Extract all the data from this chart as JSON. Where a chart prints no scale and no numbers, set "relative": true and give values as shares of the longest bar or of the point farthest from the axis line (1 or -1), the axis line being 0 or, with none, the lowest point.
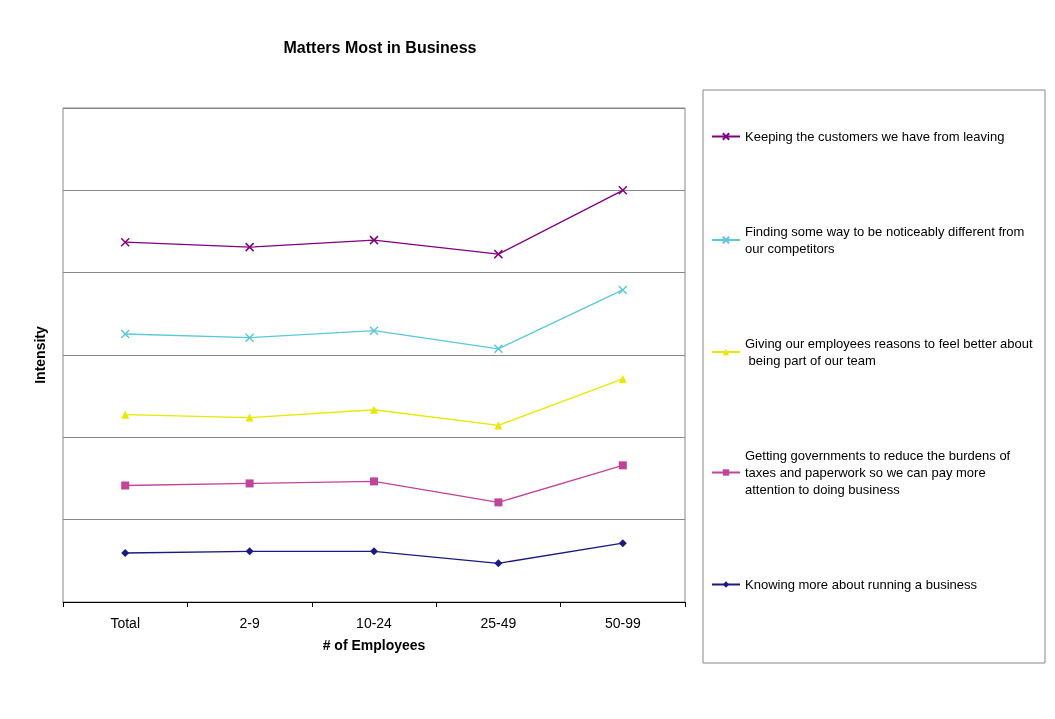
{
  "chart_data": {
    "type": "line",
    "title": "Matters Most in Business",
    "xlabel": "# of Employees",
    "ylabel": "Intensity",
    "relative": true,
    "grid": "y",
    "legend": "right",
    "tick_labels": "x",
    "categories": [
      "Total",
      "2-9",
      "10-24",
      "25-49",
      "50-99"
    ],
    "series": [
      {
        "name": "Keeping the customers we have from leaving",
        "color": "#800080",
        "marker": "cross",
        "values": [
          0.874,
          0.862,
          0.879,
          0.845,
          1
        ]
      },
      {
        "name": "Finding some way to be noticeably different from our competitors",
        "color": "#5bc8d8",
        "marker": "cross",
        "values": [
          0.651,
          0.642,
          0.659,
          0.615,
          0.758
        ]
      },
      {
        "name": "Giving our employees reasons to feel better about being part of our team",
        "color": "#e8e800",
        "marker": "triangle",
        "values": [
          0.455,
          0.448,
          0.467,
          0.429,
          0.542
        ]
      },
      {
        "name": "Getting governments to reduce the burdens of taxes and paperwork so we can pay more attention to doing business",
        "color": "#c0449a",
        "marker": "square",
        "values": [
          0.283,
          0.288,
          0.293,
          0.242,
          0.332
        ]
      },
      {
        "name": "Knowing more about running a business",
        "color": "#1a1a80",
        "marker": "diamond",
        "values": [
          0.119,
          0.123,
          0.123,
          0.094,
          0.143
        ]
      }
    ]
  }
}
